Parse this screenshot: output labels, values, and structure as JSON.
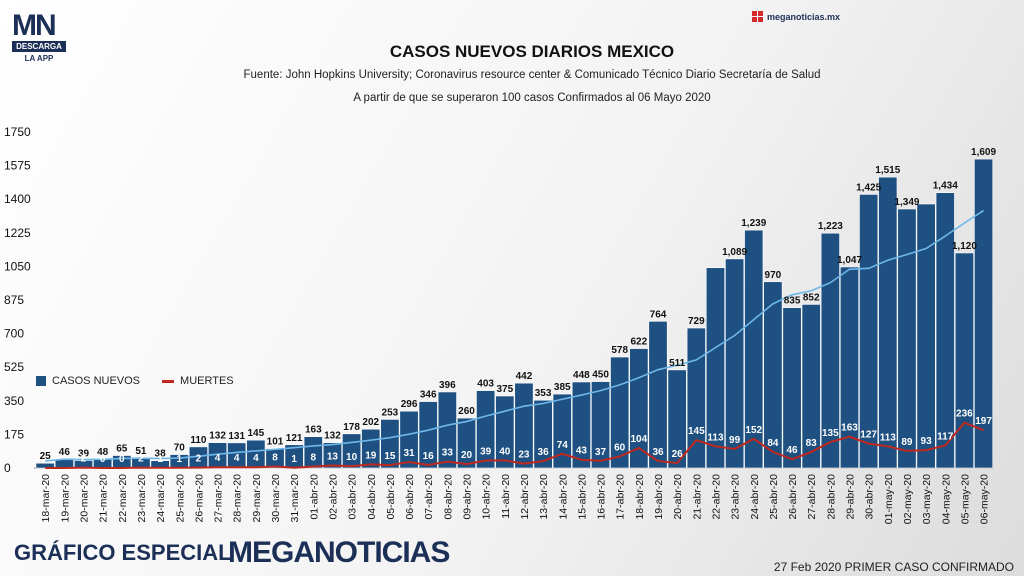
{
  "branding": {
    "logo_text": "MN",
    "logo_bar": "DESCARGA",
    "logo_sub": "LA APP",
    "site": "meganoticias.mx",
    "footer_left": "GRÁFICO ESPECIAL",
    "footer_brand": "MEGANOTICIAS",
    "footer_right": "27 Feb 2020 PRIMER CASO CONFIRMADO"
  },
  "colors": {
    "bar": "#1f5082",
    "deaths_line": "#c0281e",
    "trend_line": "#6fb7e8",
    "label_on_bar": "#ffffff"
  },
  "chart_data": {
    "type": "bar",
    "title": "CASOS NUEVOS DIARIOS MEXICO",
    "subtitle": "Fuente: John Hopkins University; Coronavirus resource center & Comunicado Técnico Diario Secretaría de Salud",
    "subtitle2": "A partir de que se superaron 100 casos Confirmados al 06 Mayo 2020",
    "ylim": [
      0,
      1750
    ],
    "yticks": [
      "0",
      "175",
      "350",
      "525",
      "700",
      "875",
      "1050",
      "1225",
      "1400",
      "1575",
      "1750"
    ],
    "legend": {
      "position": "left-middle",
      "entries": [
        "CASOS NUEVOS",
        "MUERTES"
      ]
    },
    "categories": [
      "18-mar-20",
      "19-mar-20",
      "20-mar-20",
      "21-mar-20",
      "22-mar-20",
      "23-mar-20",
      "24-mar-20",
      "25-mar-20",
      "26-mar-20",
      "27-mar-20",
      "28-mar-20",
      "29-mar-20",
      "30-mar-20",
      "31-mar-20",
      "01-abr-20",
      "02-abr-20",
      "03-abr-20",
      "04-abr-20",
      "05-abr-20",
      "06-abr-20",
      "07-abr-20",
      "08-abr-20",
      "09-abr-20",
      "10-abr-20",
      "11-abr-20",
      "12-abr-20",
      "13-abr-20",
      "14-abr-20",
      "15-abr-20",
      "16-abr-20",
      "17-abr-20",
      "18-abr-20",
      "19-abr-20",
      "20-abr-20",
      "21-abr-20",
      "22-abr-20",
      "23-abr-20",
      "24-abr-20",
      "25-abr-20",
      "26-abr-20",
      "27-abr-20",
      "28-abr-20",
      "29-abr-20",
      "30-abr-20",
      "01-may-20",
      "02-may-20",
      "03-may-20",
      "04-may-20",
      "05-may-20",
      "06-may-20"
    ],
    "series": [
      {
        "name": "CASOS NUEVOS",
        "labels": [
          "25",
          "46",
          "39",
          "48",
          "65",
          "51",
          "38",
          "70",
          "110",
          "132",
          "131",
          "145",
          "101",
          "121",
          "163",
          "132",
          "178",
          "202",
          "253",
          "296",
          "346",
          "396",
          "260",
          "403",
          "375",
          "442",
          "353",
          "385",
          "448",
          "450",
          "578",
          "622",
          "764",
          "511",
          "729",
          "",
          "1,089",
          "1,239",
          "970",
          "835",
          "852",
          "1,223",
          "1,047",
          "1,425",
          "1,515",
          "1,349",
          "",
          "1,434",
          "1,120",
          "1,609"
        ],
        "values": [
          25,
          46,
          39,
          48,
          65,
          51,
          38,
          70,
          110,
          132,
          131,
          145,
          101,
          121,
          163,
          132,
          178,
          202,
          253,
          296,
          346,
          396,
          260,
          403,
          375,
          442,
          353,
          385,
          448,
          450,
          578,
          622,
          764,
          511,
          729,
          1043,
          1089,
          1239,
          970,
          835,
          852,
          1223,
          1047,
          1425,
          1515,
          1349,
          1375,
          1434,
          1120,
          1609
        ]
      },
      {
        "name": "MUERTES",
        "labels": [
          "",
          "",
          "2",
          "0",
          "0",
          "2",
          "1",
          "1",
          "2",
          "4",
          "4",
          "4",
          "8",
          "1",
          "8",
          "13",
          "10",
          "19",
          "15",
          "31",
          "16",
          "33",
          "20",
          "39",
          "40",
          "23",
          "36",
          "74",
          "43",
          "37",
          "60",
          "104",
          "36",
          "26",
          "145",
          "113",
          "99",
          "152",
          "84",
          "46",
          "83",
          "135",
          "163",
          "127",
          "113",
          "89",
          "93",
          "117",
          "236",
          "197"
        ],
        "values": [
          0,
          0,
          2,
          0,
          0,
          2,
          1,
          1,
          2,
          4,
          4,
          4,
          8,
          1,
          8,
          13,
          10,
          19,
          15,
          31,
          16,
          33,
          20,
          39,
          40,
          23,
          36,
          74,
          43,
          37,
          60,
          104,
          36,
          26,
          145,
          113,
          99,
          152,
          84,
          46,
          83,
          135,
          163,
          127,
          113,
          89,
          93,
          117,
          236,
          197
        ]
      },
      {
        "values": [
          36,
          46,
          44,
          45,
          50,
          51,
          49,
          52,
          61,
          72,
          81,
          89,
          97,
          106,
          115,
          122,
          133,
          145,
          158,
          176,
          197,
          223,
          242,
          270,
          296,
          322,
          336,
          358,
          380,
          403,
          433,
          470,
          512,
          535,
          563,
          627,
          690,
          773,
          855,
          902,
          923,
          965,
          1035,
          1040,
          1082,
          1112,
          1143,
          1208,
          1276,
          1341
        ]
      }
    ]
  }
}
